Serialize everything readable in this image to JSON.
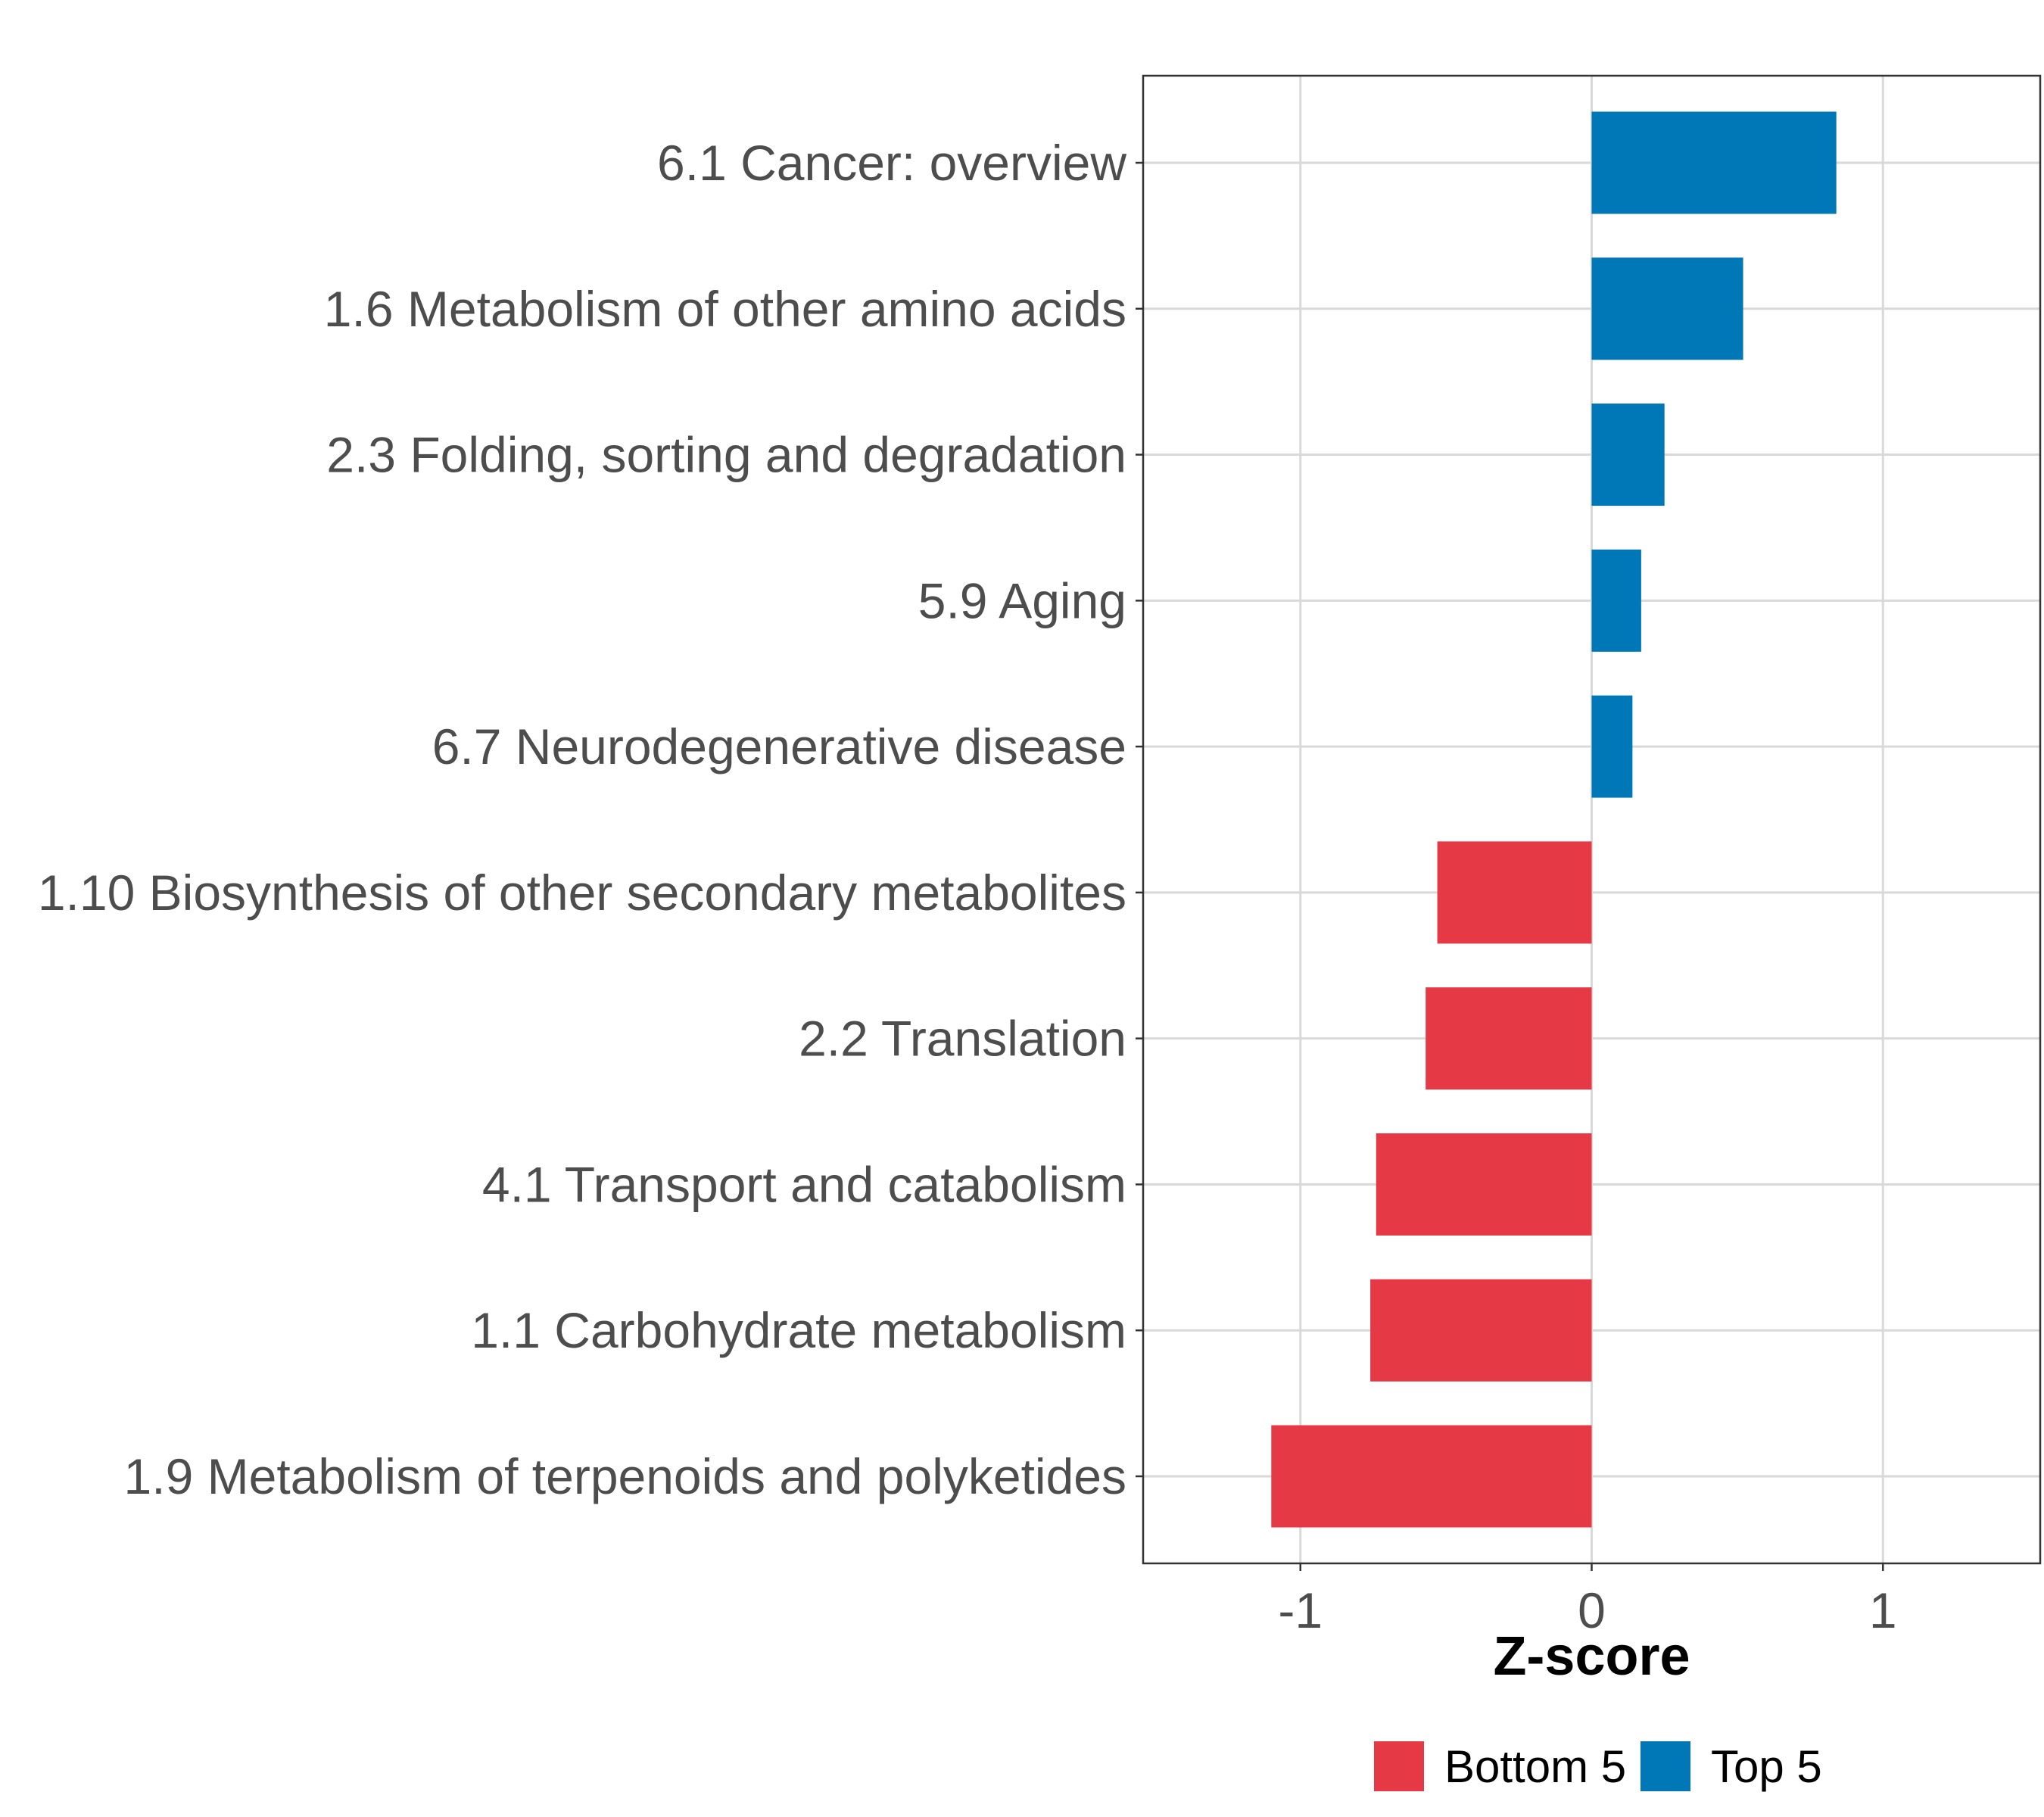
{
  "chart_data": {
    "type": "bar",
    "orientation": "horizontal",
    "title": "",
    "xlabel": "Z-score",
    "ylabel": "",
    "xlim": [
      -1.54,
      1.54
    ],
    "xticks": [
      -1,
      0,
      1
    ],
    "xtick_labels": [
      "-1",
      "0",
      "1"
    ],
    "grid": true,
    "legend_position": "bottom",
    "categories": [
      "6.1 Cancer: overview",
      "1.6 Metabolism of other amino acids",
      "2.3 Folding, sorting and degradation",
      "5.9 Aging",
      "6.7 Neurodegenerative disease",
      "1.10 Biosynthesis of other secondary metabolites",
      "2.2 Translation",
      "4.1 Transport and catabolism",
      "1.1 Carbohydrate metabolism",
      "1.9 Metabolism of terpenoids and polyketides"
    ],
    "values": [
      0.84,
      0.52,
      0.25,
      0.17,
      0.14,
      -0.53,
      -0.57,
      -0.74,
      -0.76,
      -1.1
    ],
    "groups": [
      "Top 5",
      "Top 5",
      "Top 5",
      "Top 5",
      "Top 5",
      "Bottom 5",
      "Bottom 5",
      "Bottom 5",
      "Bottom 5",
      "Bottom 5"
    ],
    "legend": [
      {
        "name": "Bottom 5",
        "color": "#E63946"
      },
      {
        "name": "Top 5",
        "color": "#0077B6"
      }
    ]
  }
}
